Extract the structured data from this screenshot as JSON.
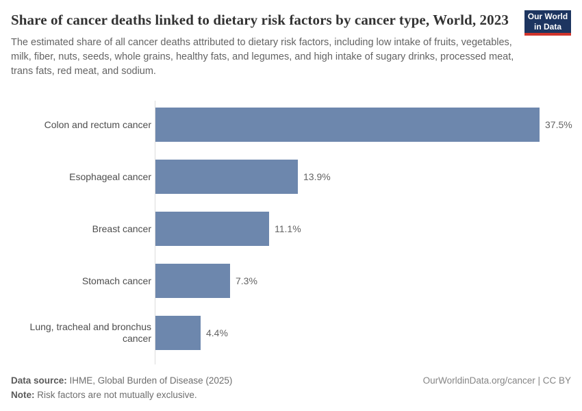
{
  "header": {
    "title": "Share of cancer deaths linked to dietary risk factors by cancer type, World, 2023",
    "subtitle": "The estimated share of all cancer deaths attributed to dietary risk factors, including low intake of fruits, vegetables, milk, fiber, nuts, seeds, whole grains, healthy fats, and legumes, and high intake of sugary drinks, processed meat, trans fats, red meat, and sodium.",
    "logo": {
      "line1": "Our World",
      "line2": "in Data",
      "bg_color": "#1d3560",
      "accent_color": "#d0342c"
    }
  },
  "chart_data": {
    "type": "bar",
    "orientation": "horizontal",
    "title": "Share of cancer deaths linked to dietary risk factors by cancer type, World, 2023",
    "categories": [
      "Colon and rectum cancer",
      "Esophageal cancer",
      "Breast cancer",
      "Stomach cancer",
      "Lung, tracheal and bronchus cancer"
    ],
    "values": [
      37.5,
      13.9,
      11.1,
      7.3,
      4.4
    ],
    "value_labels": [
      "37.5%",
      "13.9%",
      "11.1%",
      "7.3%",
      "4.4%"
    ],
    "unit": "%",
    "xlim": [
      0,
      40
    ],
    "grid": false,
    "legend": "none",
    "bar_color": "#6d87ad",
    "axis_line_color": "#dcdcdc"
  },
  "footer": {
    "data_source_label": "Data source:",
    "data_source_value": " IHME, Global Burden of Disease (2025)",
    "note_label": "Note:",
    "note_value": " Risk factors are not mutually exclusive.",
    "attribution": "OurWorldinData.org/cancer | CC BY"
  }
}
